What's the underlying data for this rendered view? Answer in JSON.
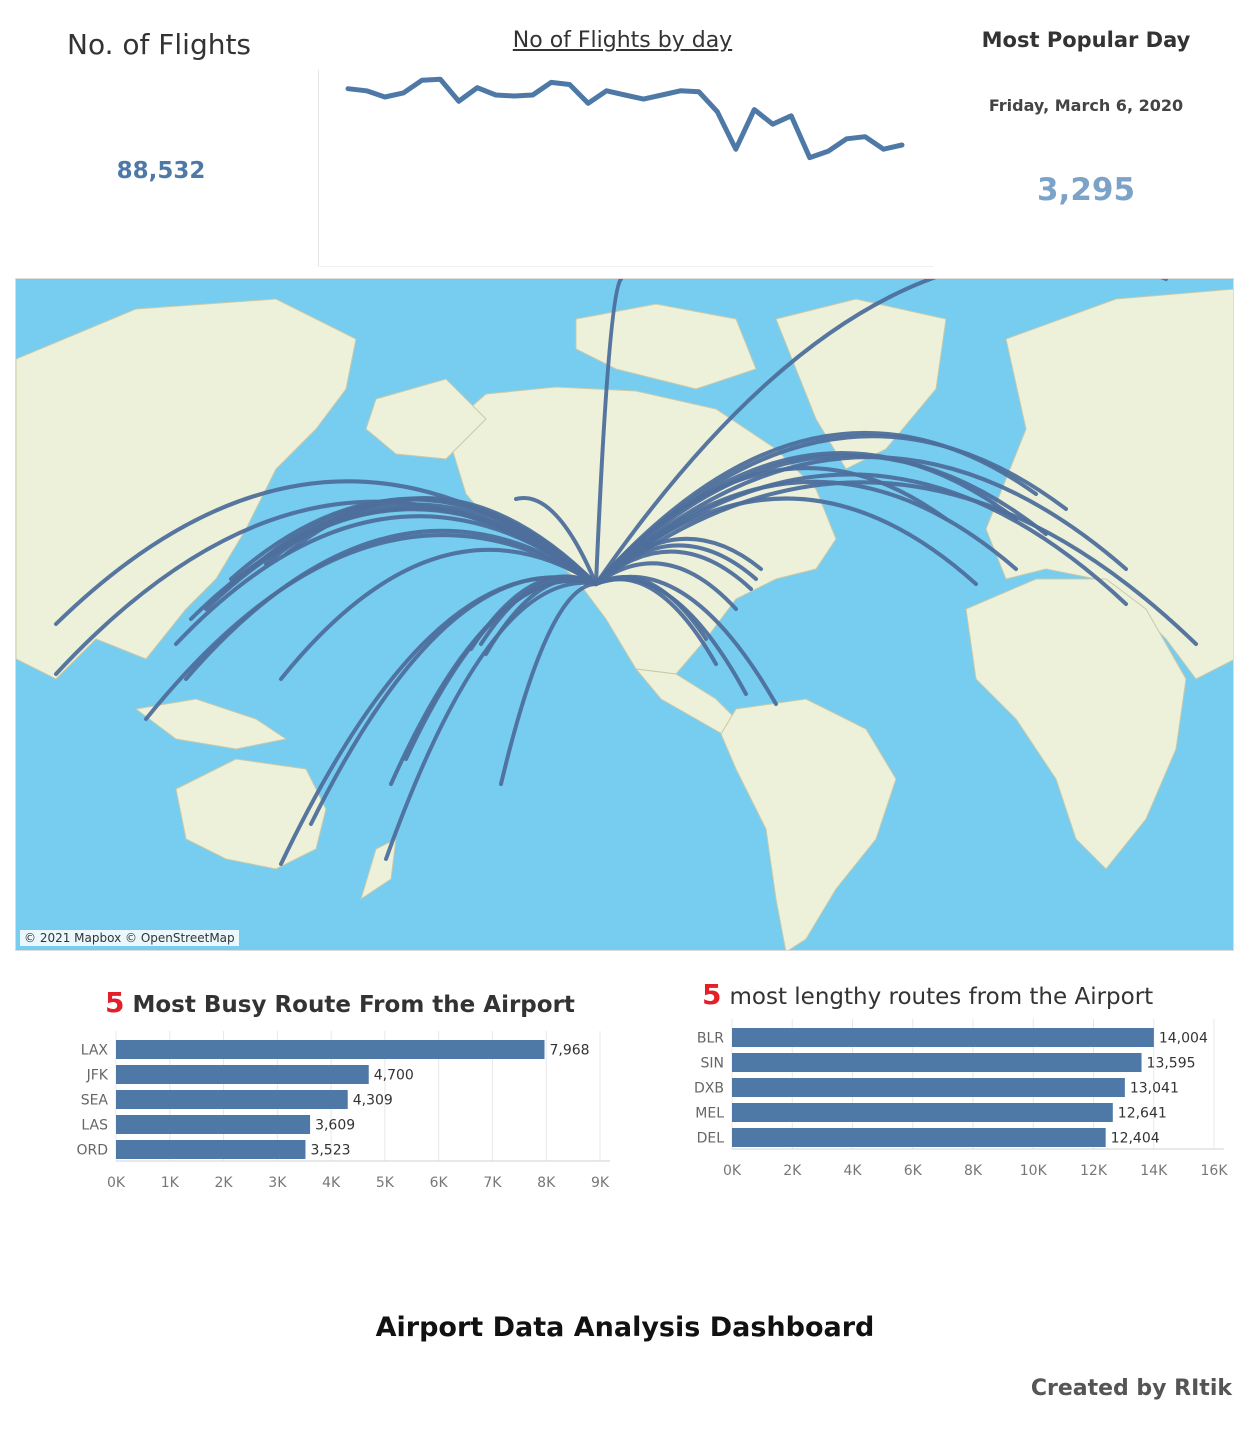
{
  "kpi": {
    "title": "No. of Flights",
    "value": "88,532"
  },
  "trend": {
    "title": "No of Flights by day",
    "color": "#4e79a7"
  },
  "popular": {
    "title": "Most Popular Day",
    "date": "Friday, March 6, 2020",
    "value": "3,295"
  },
  "map": {
    "attribution": "© 2021 Mapbox © OpenStreetMap",
    "water": "#76cdef",
    "land": "#eef1d9",
    "route_color": "#4e6f9c"
  },
  "busy": {
    "num": "5",
    "title": "Most Busy Route From the Airport"
  },
  "lengthy": {
    "num": "5",
    "title": "most lengthy routes from the Airport"
  },
  "chart_data": [
    {
      "type": "line",
      "title": "No of Flights by day",
      "values": [
        3160,
        3150,
        3120,
        3140,
        3200,
        3205,
        3100,
        3165,
        3130,
        3125,
        3130,
        3190,
        3180,
        3090,
        3150,
        3130,
        3110,
        3130,
        3150,
        3145,
        3050,
        2870,
        3060,
        2990,
        3030,
        2830,
        2860,
        2920,
        2930,
        2870,
        2890
      ],
      "ylim": [
        2780,
        3240
      ]
    },
    {
      "type": "bar",
      "title": "Most Busy Route From the Airport",
      "categories": [
        "LAX",
        "JFK",
        "SEA",
        "LAS",
        "ORD"
      ],
      "values": [
        7968,
        4700,
        4309,
        3609,
        3523
      ],
      "value_labels": [
        "7,968",
        "4,700",
        "4,309",
        "3,609",
        "3,523"
      ],
      "ticks": [
        0,
        1000,
        2000,
        3000,
        4000,
        5000,
        6000,
        7000,
        8000,
        9000
      ],
      "tick_labels": [
        "0K",
        "1K",
        "2K",
        "3K",
        "4K",
        "5K",
        "6K",
        "7K",
        "8K",
        "9K"
      ],
      "xlim": [
        0,
        9000
      ],
      "color": "#4e79a7"
    },
    {
      "type": "bar",
      "title": "most lengthy routes from the Airport",
      "categories": [
        "BLR",
        "SIN",
        "DXB",
        "MEL",
        "DEL"
      ],
      "values": [
        14004,
        13595,
        13041,
        12641,
        12404
      ],
      "value_labels": [
        "14,004",
        "13,595",
        "13,041",
        "12,641",
        "12,404"
      ],
      "ticks": [
        0,
        2000,
        4000,
        6000,
        8000,
        10000,
        12000,
        14000,
        16000
      ],
      "tick_labels": [
        "0K",
        "2K",
        "4K",
        "6K",
        "8K",
        "10K",
        "12K",
        "14K",
        "16K"
      ],
      "xlim": [
        0,
        16000
      ],
      "color": "#4e79a7"
    }
  ],
  "footer": {
    "title": "Airport Data Analysis Dashboard",
    "credit": "Created   by RItik"
  }
}
